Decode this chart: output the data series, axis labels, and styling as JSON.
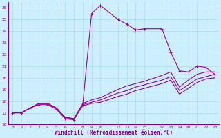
{
  "xlabel": "Windchill (Refroidissement éolien,°C)",
  "bg_color": "#cceeff",
  "grid_color": "#aadddd",
  "line_color": "#990099",
  "series1_x": [
    0,
    1,
    2,
    3,
    4,
    5,
    6,
    7,
    8,
    9,
    10,
    12,
    13,
    14,
    15,
    17,
    18,
    19,
    20,
    21,
    22,
    23
  ],
  "series1_y": [
    17.0,
    17.0,
    17.4,
    17.7,
    17.7,
    17.3,
    16.5,
    16.4,
    17.7,
    25.5,
    26.2,
    25.0,
    24.6,
    24.1,
    24.2,
    24.2,
    22.2,
    20.6,
    20.5,
    21.0,
    20.9,
    20.3
  ],
  "series2_x": [
    0,
    1,
    2,
    3,
    4,
    5,
    6,
    7,
    8,
    9,
    10,
    12,
    13,
    14,
    15,
    17,
    18,
    19,
    20,
    21,
    22,
    23
  ],
  "series2_y": [
    17.0,
    17.0,
    17.4,
    17.8,
    17.8,
    17.4,
    16.6,
    16.5,
    17.8,
    18.1,
    18.3,
    19.0,
    19.3,
    19.5,
    19.7,
    20.2,
    20.5,
    19.2,
    19.8,
    20.3,
    20.5,
    20.5
  ],
  "series3_x": [
    0,
    1,
    2,
    3,
    4,
    5,
    6,
    7,
    8,
    9,
    10,
    12,
    13,
    14,
    15,
    17,
    18,
    19,
    20,
    21,
    22,
    23
  ],
  "series3_y": [
    17.0,
    17.0,
    17.4,
    17.8,
    17.8,
    17.4,
    16.6,
    16.5,
    17.7,
    17.9,
    18.1,
    18.7,
    18.9,
    19.2,
    19.4,
    19.8,
    20.1,
    18.9,
    19.4,
    19.9,
    20.1,
    20.3
  ],
  "series4_x": [
    0,
    1,
    2,
    3,
    4,
    5,
    6,
    7,
    8,
    9,
    10,
    12,
    13,
    14,
    15,
    17,
    18,
    19,
    20,
    21,
    22,
    23
  ],
  "series4_y": [
    17.0,
    17.0,
    17.4,
    17.8,
    17.8,
    17.4,
    16.6,
    16.5,
    17.6,
    17.8,
    17.9,
    18.4,
    18.6,
    18.9,
    19.1,
    19.5,
    19.8,
    18.6,
    19.1,
    19.6,
    19.9,
    20.0
  ],
  "ylim": [
    16,
    26.5
  ],
  "yticks": [
    16,
    17,
    18,
    19,
    20,
    21,
    22,
    23,
    24,
    25,
    26
  ],
  "xticks": [
    0,
    1,
    2,
    3,
    4,
    5,
    6,
    7,
    8,
    9,
    10,
    12,
    13,
    14,
    15,
    17,
    18,
    19,
    20,
    21,
    22,
    23
  ],
  "xlim": [
    -0.5,
    23.5
  ]
}
